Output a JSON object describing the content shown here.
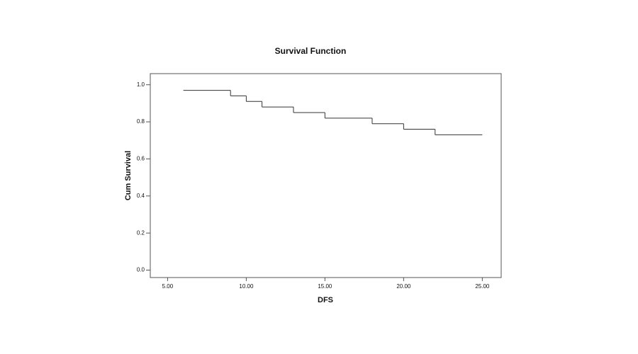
{
  "chart_data": {
    "type": "line",
    "step": "post",
    "title": "Survival Function",
    "x_label": "DFS",
    "y_label": "Cum Survival",
    "x": [
      6,
      9,
      10,
      11,
      13,
      15,
      18,
      20,
      22,
      25
    ],
    "y": [
      0.97,
      0.94,
      0.91,
      0.88,
      0.85,
      0.82,
      0.79,
      0.76,
      0.73,
      0.73
    ],
    "color": "#333333",
    "xlim": [
      3.9,
      26.2
    ],
    "xticks": [
      {
        "value": 5,
        "label": "5.00"
      },
      {
        "value": 10,
        "label": "10.00"
      },
      {
        "value": 15,
        "label": "15.00"
      },
      {
        "value": 20,
        "label": "20.00"
      },
      {
        "value": 25,
        "label": "25.00"
      }
    ],
    "ylim": [
      -0.04,
      1.06
    ],
    "yticks": [
      {
        "value": 0,
        "label": "0.0"
      },
      0.2,
      0.4,
      0.6,
      0.8,
      {
        "value": 1,
        "label": "1.0"
      }
    ]
  }
}
